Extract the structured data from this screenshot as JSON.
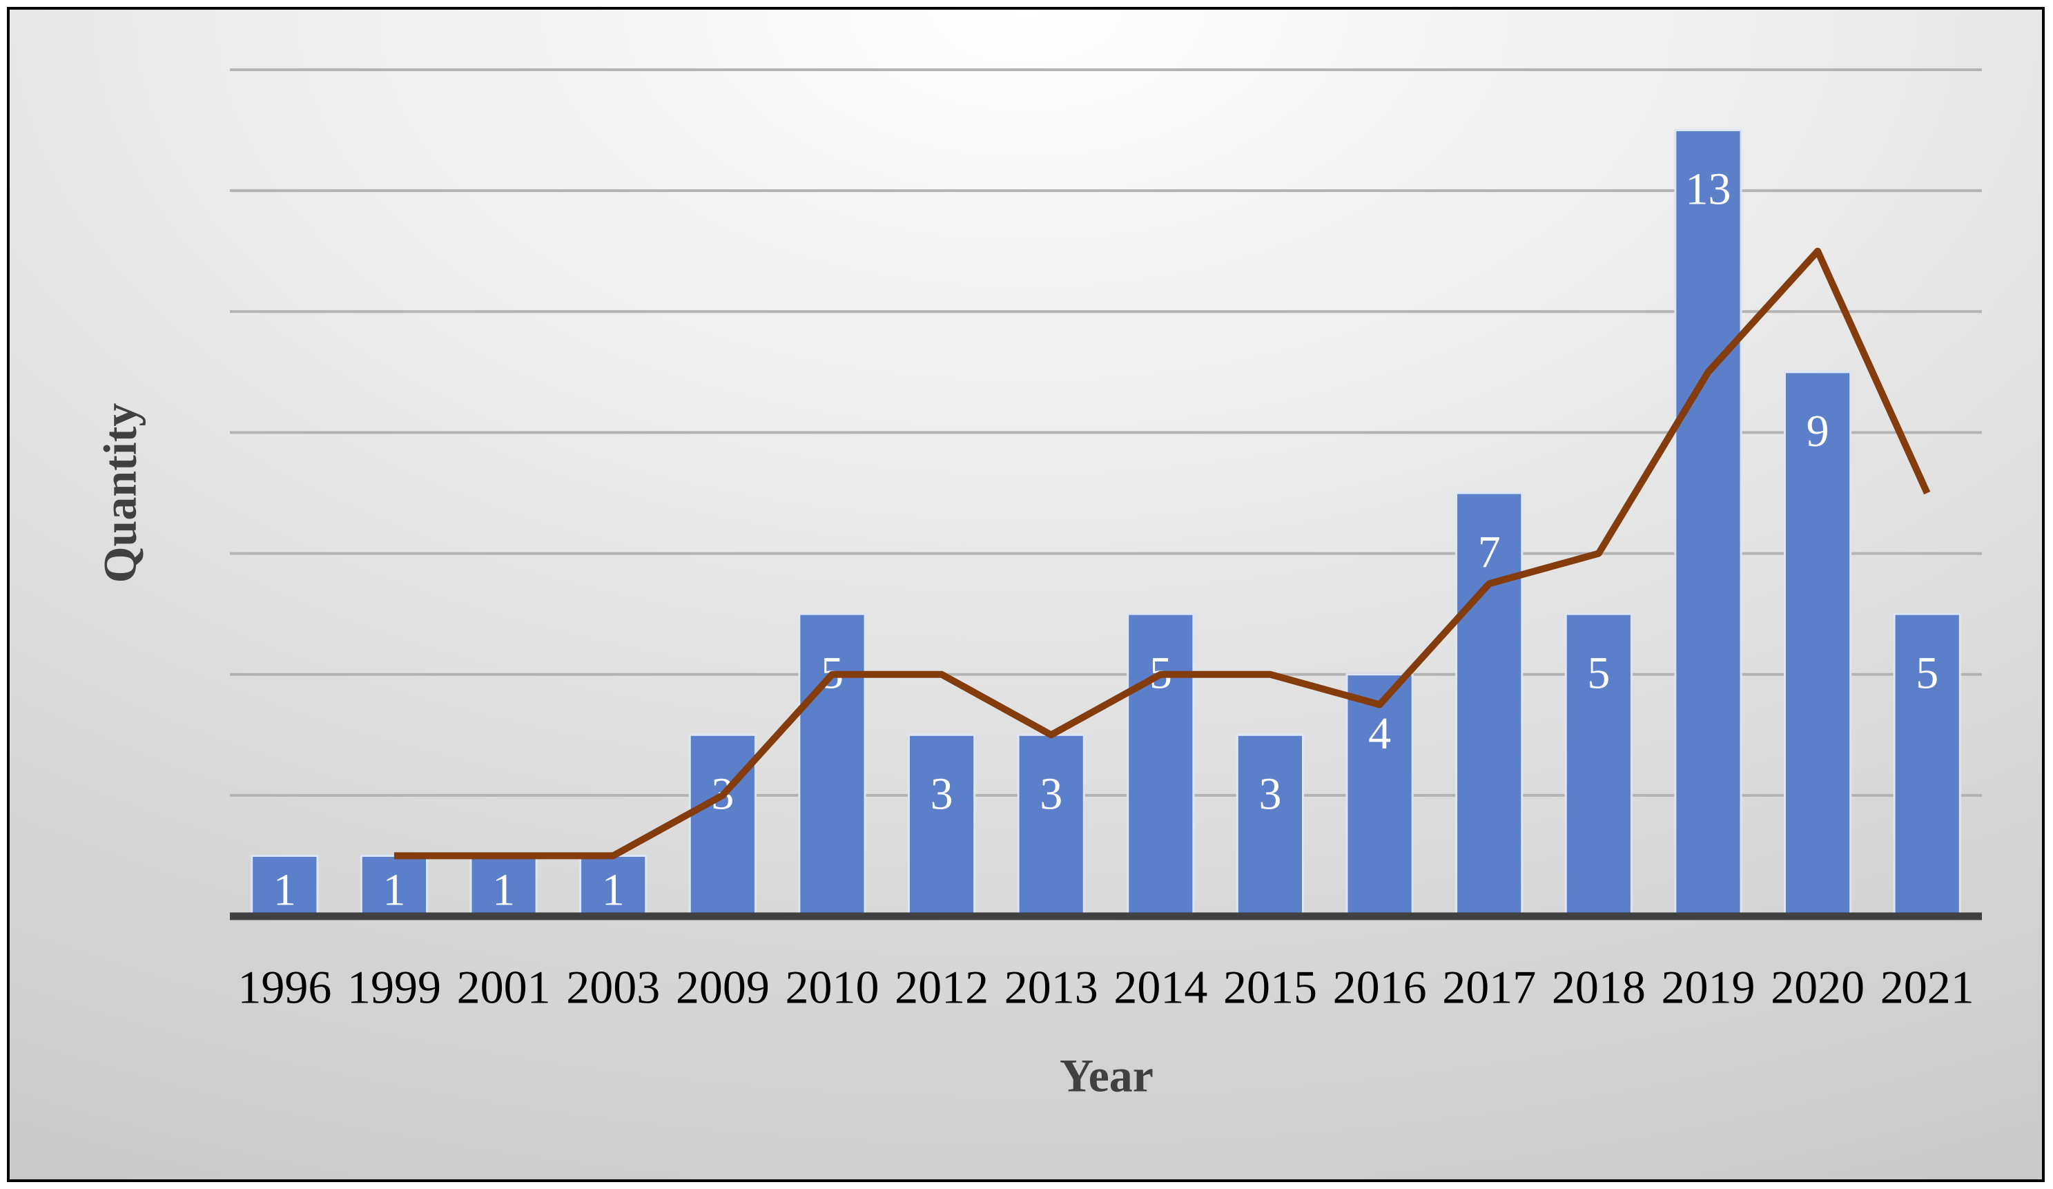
{
  "chart_data": {
    "type": "bar_line",
    "x_label": "Year",
    "y_label": "Quantity",
    "categories": [
      "1996",
      "1999",
      "2001",
      "2003",
      "2009",
      "2010",
      "2012",
      "2013",
      "2014",
      "2015",
      "2016",
      "2017",
      "2018",
      "2019",
      "2020",
      "2021"
    ],
    "series": [
      {
        "type": "bar",
        "color": "#5b7fc9",
        "values": [
          1,
          1,
          1,
          1,
          3,
          5,
          3,
          3,
          5,
          3,
          4,
          7,
          5,
          13,
          9,
          5
        ]
      },
      {
        "type": "line",
        "color": "#843c0c",
        "values": [
          null,
          1,
          1,
          1,
          2,
          4,
          4,
          3,
          4,
          4,
          3.5,
          5.5,
          6,
          9,
          11,
          7
        ]
      }
    ],
    "ylim": [
      0,
      14
    ],
    "yticks": [
      2,
      4,
      6,
      8,
      10,
      12,
      14
    ],
    "grid": true
  }
}
